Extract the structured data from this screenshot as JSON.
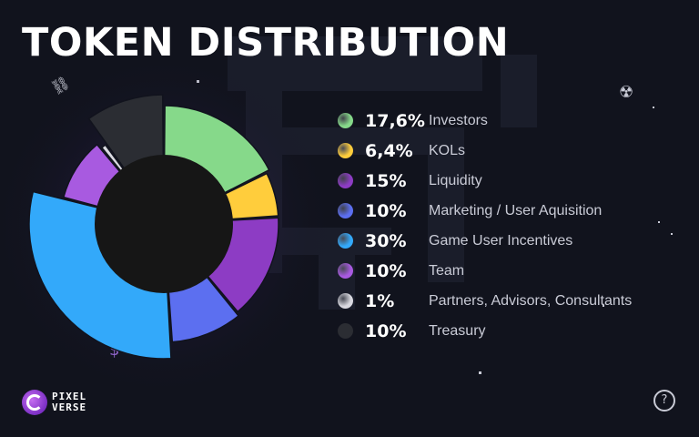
{
  "title": "TOKEN DISTRIBUTION",
  "brand": {
    "line1": "PIXEL",
    "line2": "VERSE"
  },
  "chart_data": {
    "type": "pie",
    "title": "TOKEN DISTRIBUTION",
    "start_angle_deg": 0,
    "donut": true,
    "legend_position": "right",
    "slices": [
      {
        "label": "Investors",
        "value": 17.6,
        "value_text": "17,6%",
        "color": "#86d98a"
      },
      {
        "label": "KOLs",
        "value": 6.4,
        "value_text": "6,4%",
        "color": "#ffcd3c"
      },
      {
        "label": "Liquidity",
        "value": 15,
        "value_text": "15%",
        "color": "#8d3cc4"
      },
      {
        "label": "Marketing / User Aquisition",
        "value": 10,
        "value_text": "10%",
        "color": "#5c6ff0"
      },
      {
        "label": "Game User Incentives",
        "value": 30,
        "value_text": "30%",
        "color": "#33a9fa"
      },
      {
        "label": "Team",
        "value": 10,
        "value_text": "10%",
        "color": "#a85ae0"
      },
      {
        "label": "Partners, Advisors, Consultants",
        "value": 1,
        "value_text": "1%",
        "color": "#d9d9e0"
      },
      {
        "label": "Treasury",
        "value": 10,
        "value_text": "10%",
        "color": "#2b2d33"
      }
    ]
  }
}
